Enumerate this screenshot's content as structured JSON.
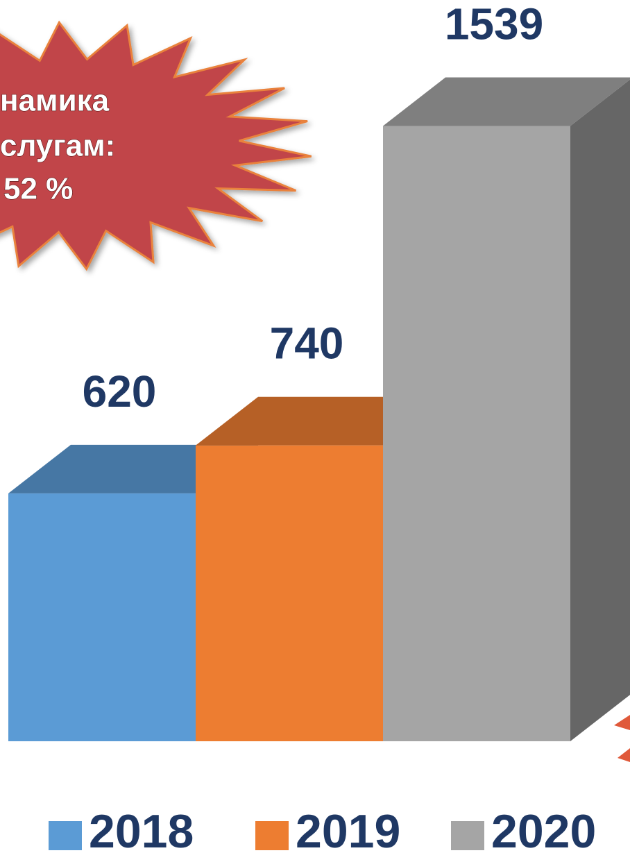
{
  "chart_data": {
    "type": "bar",
    "categories": [
      null
    ],
    "series": [
      {
        "name": "2018",
        "color": "#5b9bd5",
        "values": [
          620
        ]
      },
      {
        "name": "2019",
        "color": "#ed7d31",
        "values": [
          740
        ]
      },
      {
        "name": "2020",
        "color": "#a5a5a5",
        "values": [
          1539
        ]
      }
    ],
    "annotations": [
      "намика",
      "слугам:",
      "52 %"
    ]
  }
}
